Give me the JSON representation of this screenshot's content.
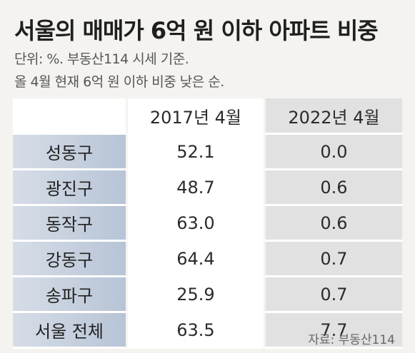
{
  "title": "서울의 매매가 6억 원 이하 아파트 비중",
  "subtitle_line1": "단위: %. 부동산114 시세 기준.",
  "subtitle_line2": "올 4월 현재 6억 원 이하 비중 낮은 순.",
  "table": {
    "headers": [
      "",
      "2017년 4월",
      "2022년 4월"
    ],
    "rows": [
      {
        "district": "성동구",
        "y2017": "52.1",
        "y2022": "0.0"
      },
      {
        "district": "광진구",
        "y2017": "48.7",
        "y2022": "0.6"
      },
      {
        "district": "동작구",
        "y2017": "63.0",
        "y2022": "0.6"
      },
      {
        "district": "강동구",
        "y2017": "64.4",
        "y2022": "0.7"
      },
      {
        "district": "송파구",
        "y2017": "25.9",
        "y2022": "0.7"
      },
      {
        "district": "서울 전체",
        "y2017": "63.5",
        "y2022": "7.7"
      }
    ]
  },
  "source": "자료: 부동산114"
}
